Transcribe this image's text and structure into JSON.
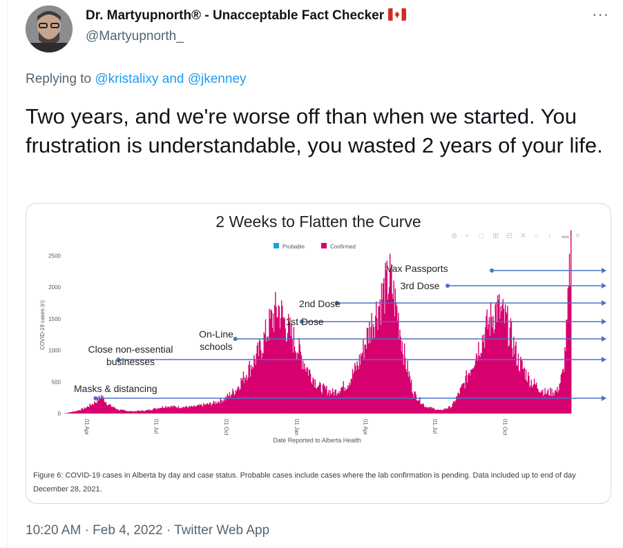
{
  "tweet": {
    "author_name": "Dr. Martyupnorth® - Unacceptable Fact Checker",
    "author_flag_icon": "canada-flag-icon",
    "author_handle": "@Martyupnorth_",
    "more_icon": "more-options-icon",
    "more_glyph": "···",
    "reply_prefix": "Replying to",
    "reply_user1": "@kristalixy",
    "reply_and": "and",
    "reply_user2": "@jkenney",
    "text": "Two years, and we're worse off than when we started. You frustration is understandable, you wasted 2 years of your life.",
    "time": "10:20 AM",
    "separator": "·",
    "date": "Feb 4, 2022",
    "source": "Twitter Web App"
  },
  "colors": {
    "confirmed": "#d6006e",
    "probable": "#1ba3d6",
    "annotation_line": "#4a72c4",
    "link": "#1d9bf0"
  },
  "chart_data": {
    "type": "bar",
    "title": "2 Weeks to Flatten the Curve",
    "ylabel": "COVID-19 cases (n)",
    "xlabel": "Date Reported to Alberta Health",
    "ylim": [
      0,
      2800
    ],
    "yticks": [
      "0",
      "500",
      "1000",
      "1500",
      "2000",
      "2500"
    ],
    "xticks": [
      "01 Apr",
      "01 Jul",
      "01 Oct",
      "01 Jan",
      "01 Apr",
      "01 Jul",
      "01 Oct"
    ],
    "legend": [
      "Probable",
      "Confirmed"
    ],
    "legend_position": "top-center",
    "x_range": [
      "2020-03-05",
      "2021-12-28"
    ],
    "series": [
      {
        "name": "Confirmed",
        "points": [
          [
            "2020-03-05",
            0
          ],
          [
            "2020-03-20",
            40
          ],
          [
            "2020-04-01",
            90
          ],
          [
            "2020-04-15",
            200
          ],
          [
            "2020-04-22",
            300
          ],
          [
            "2020-05-01",
            150
          ],
          [
            "2020-05-15",
            60
          ],
          [
            "2020-06-01",
            35
          ],
          [
            "2020-06-20",
            50
          ],
          [
            "2020-07-15",
            120
          ],
          [
            "2020-08-01",
            110
          ],
          [
            "2020-08-20",
            110
          ],
          [
            "2020-09-15",
            170
          ],
          [
            "2020-10-01",
            250
          ],
          [
            "2020-10-15",
            400
          ],
          [
            "2020-11-01",
            750
          ],
          [
            "2020-11-15",
            1050
          ],
          [
            "2020-12-01",
            1600
          ],
          [
            "2020-12-10",
            1800
          ],
          [
            "2020-12-20",
            1500
          ],
          [
            "2021-01-01",
            1200
          ],
          [
            "2021-01-15",
            800
          ],
          [
            "2021-02-01",
            450
          ],
          [
            "2021-02-20",
            350
          ],
          [
            "2021-03-10",
            500
          ],
          [
            "2021-03-25",
            850
          ],
          [
            "2021-04-10",
            1500
          ],
          [
            "2021-04-25",
            2000
          ],
          [
            "2021-05-05",
            2300
          ],
          [
            "2021-05-15",
            1700
          ],
          [
            "2021-05-25",
            900
          ],
          [
            "2021-06-05",
            350
          ],
          [
            "2021-06-20",
            120
          ],
          [
            "2021-07-10",
            50
          ],
          [
            "2021-07-25",
            120
          ],
          [
            "2021-08-10",
            500
          ],
          [
            "2021-08-25",
            1000
          ],
          [
            "2021-09-10",
            1500
          ],
          [
            "2021-09-22",
            1800
          ],
          [
            "2021-10-05",
            1550
          ],
          [
            "2021-10-20",
            900
          ],
          [
            "2021-11-05",
            550
          ],
          [
            "2021-11-25",
            350
          ],
          [
            "2021-12-10",
            380
          ],
          [
            "2021-12-18",
            700
          ],
          [
            "2021-12-23",
            1500
          ],
          [
            "2021-12-28",
            2800
          ]
        ]
      }
    ],
    "annotations": [
      {
        "text": "Masks & distancing",
        "date": "2020-04-15"
      },
      {
        "text": "Close non-essential",
        "text2": "businesses",
        "date": "2020-05-15"
      },
      {
        "text": "On-Line",
        "text2": "schools",
        "date": "2020-10-15"
      },
      {
        "text": "1st Dose",
        "date": "2021-01-10"
      },
      {
        "text": "2nd Dose",
        "date": "2021-02-25"
      },
      {
        "text": "3rd Dose",
        "date": "2021-07-20"
      },
      {
        "text": "Vax Passports",
        "date": "2021-09-16"
      }
    ],
    "caption": "Figure 6: COVID-19 cases in Alberta by day and case status. Probable cases include cases where the lab confirmation is pending. Data included up to end of day December 28, 2021."
  }
}
